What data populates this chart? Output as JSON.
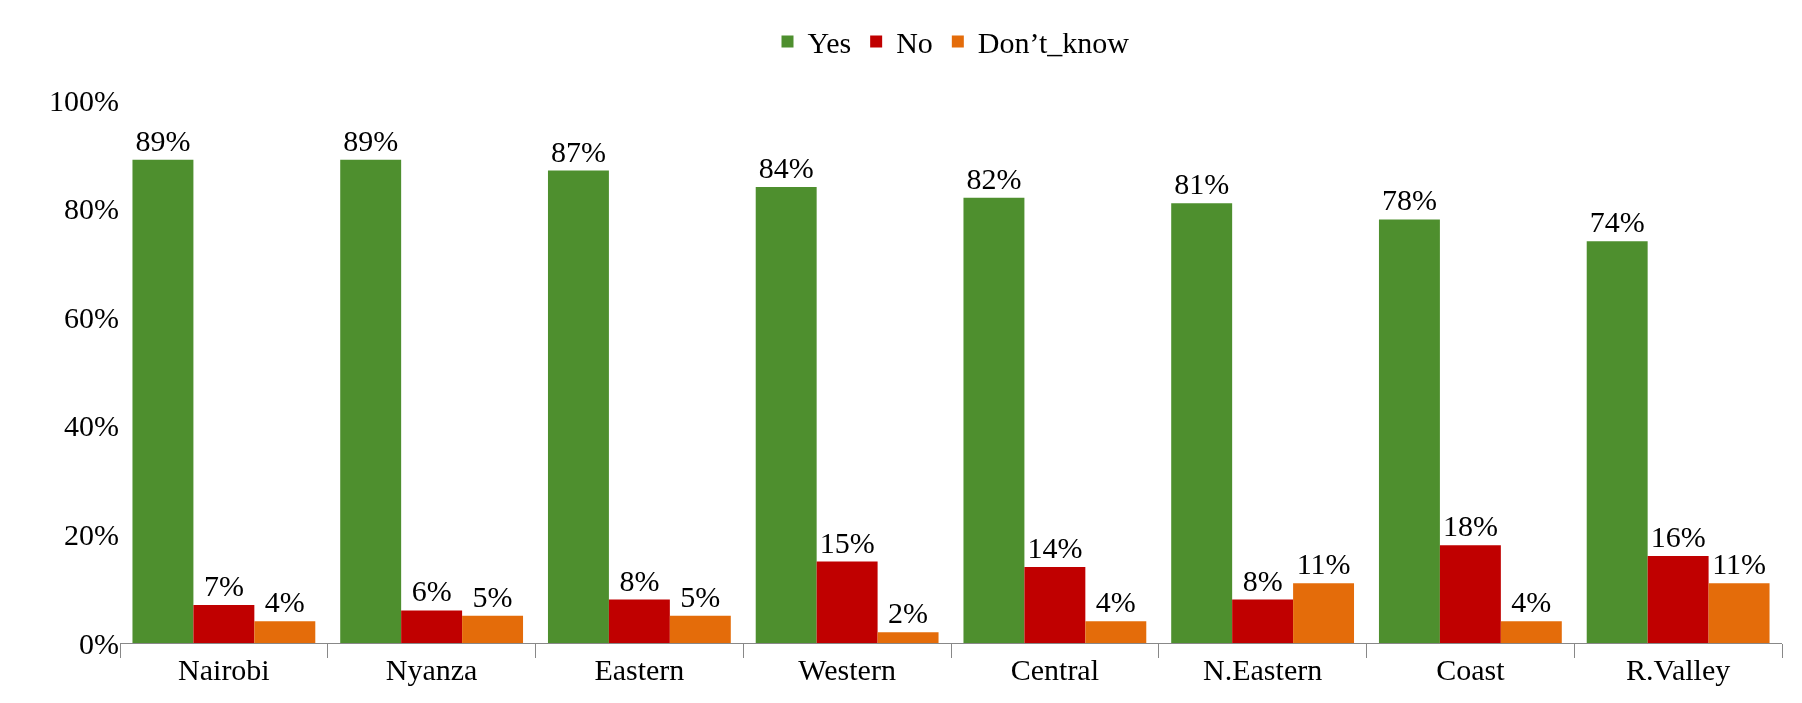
{
  "chart_data": {
    "type": "bar",
    "categories": [
      "Nairobi",
      "Nyanza",
      "Eastern",
      "Western",
      "Central",
      "N.Eastern",
      "Coast",
      "R.Valley"
    ],
    "series": [
      {
        "name": "Yes",
        "color": "#4e8f2e",
        "values": [
          89,
          89,
          87,
          84,
          82,
          81,
          78,
          74
        ],
        "value_labels": [
          "89%",
          "89%",
          "87%",
          "84%",
          "82%",
          "81%",
          "78%",
          "74%"
        ]
      },
      {
        "name": "No",
        "color": "#c00000",
        "values": [
          7,
          6,
          8,
          15,
          14,
          8,
          18,
          16
        ],
        "value_labels": [
          "7%",
          "6%",
          "8%",
          "15%",
          "14%",
          "8%",
          "18%",
          "16%"
        ]
      },
      {
        "name": "Don’t_know",
        "color": "#e46c0a",
        "values": [
          4,
          5,
          5,
          2,
          4,
          11,
          4,
          11
        ],
        "value_labels": [
          "4%",
          "5%",
          "5%",
          "2%",
          "4%",
          "11%",
          "4%",
          "11%"
        ]
      }
    ],
    "ylim": [
      0,
      100
    ],
    "yticks": [
      {
        "value": 0,
        "label": "0%"
      },
      {
        "value": 20,
        "label": "20%"
      },
      {
        "value": 40,
        "label": "40%"
      },
      {
        "value": 60,
        "label": "60%"
      },
      {
        "value": 80,
        "label": "80%"
      },
      {
        "value": 100,
        "label": "100%"
      }
    ],
    "legend": "top",
    "grid": false
  }
}
